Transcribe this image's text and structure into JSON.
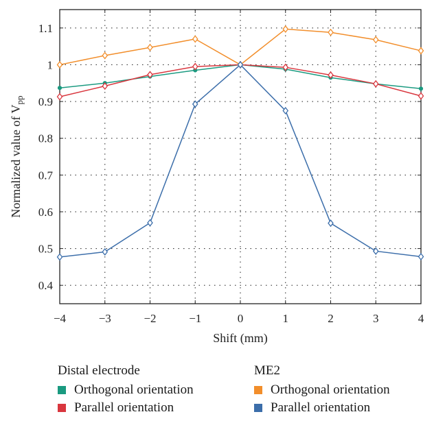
{
  "chart_data": {
    "type": "line",
    "x": [
      -4,
      -3,
      -2,
      -1,
      0,
      1,
      2,
      3,
      4
    ],
    "xlabel": "Shift (mm)",
    "ylabel": "Normalized value of V",
    "ylabel_sub": "pp",
    "xlim": [
      -4,
      4
    ],
    "ylim": [
      0.35,
      1.15
    ],
    "xticks": [
      "−4",
      "−3",
      "−2",
      "−1",
      "0",
      "1",
      "2",
      "3",
      "4"
    ],
    "yticks": [
      "0.4",
      "0.5",
      "0.6",
      "0.7",
      "0.8",
      "0.9",
      "1",
      "1.1"
    ],
    "ytick_values": [
      0.4,
      0.5,
      0.6,
      0.7,
      0.8,
      0.9,
      1.0,
      1.1
    ],
    "grid": true,
    "legend_placement": "bottom",
    "series": [
      {
        "group": "Distal electrode",
        "name": "Orthogonal orientation",
        "color": "#1a9a80",
        "marker": "dot",
        "values": [
          0.937,
          0.95,
          0.968,
          0.985,
          1.0,
          0.988,
          0.965,
          0.948,
          0.935
        ]
      },
      {
        "group": "Distal electrode",
        "name": "Parallel orientation",
        "color": "#d9363e",
        "marker": "diamond",
        "values": [
          0.913,
          0.942,
          0.973,
          0.995,
          1.0,
          0.993,
          0.972,
          0.948,
          0.915
        ]
      },
      {
        "group": "ME2",
        "name": "Orthogonal orientation",
        "color": "#f28e2b",
        "marker": "diamond",
        "values": [
          1.0,
          1.025,
          1.047,
          1.07,
          1.0,
          1.097,
          1.088,
          1.068,
          1.038
        ]
      },
      {
        "group": "ME2",
        "name": "Parallel orientation",
        "color": "#3c6eaa",
        "marker": "diamond",
        "values": [
          0.477,
          0.491,
          0.57,
          0.893,
          1.0,
          0.875,
          0.569,
          0.493,
          0.478
        ]
      }
    ]
  },
  "legend": {
    "groups": [
      {
        "title": "Distal electrode",
        "items": [
          {
            "label": "Orthogonal orientation",
            "color": "#1a9a80"
          },
          {
            "label": "Parallel orientation",
            "color": "#d9363e"
          }
        ]
      },
      {
        "title": "ME2",
        "items": [
          {
            "label": "Orthogonal orientation",
            "color": "#f28e2b"
          },
          {
            "label": "Parallel orientation",
            "color": "#3c6eaa"
          }
        ]
      }
    ]
  }
}
